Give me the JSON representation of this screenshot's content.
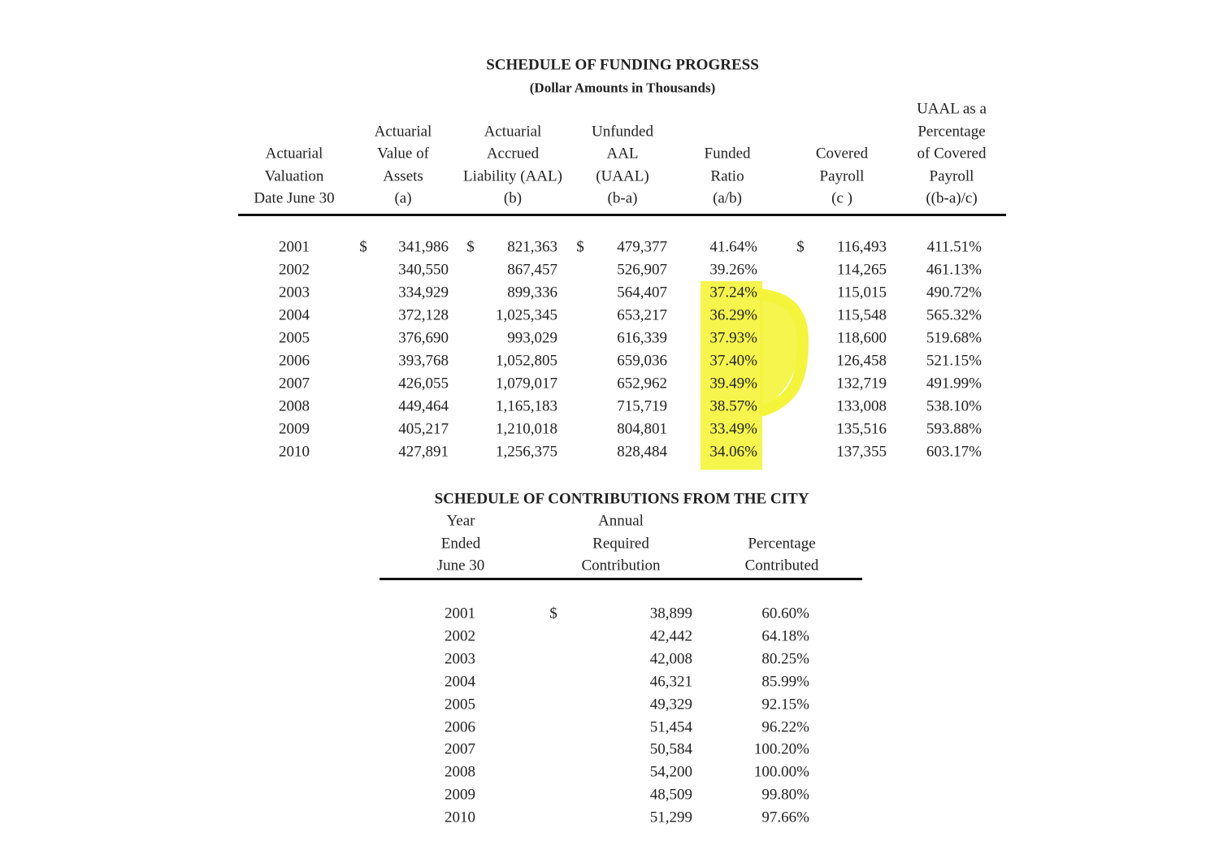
{
  "funding": {
    "title": "SCHEDULE OF FUNDING PROGRESS",
    "subtitle": "(Dollar Amounts in Thousands)",
    "dollar_sign": "$",
    "headers": [
      [
        "Actuarial",
        "Valuation",
        "Date June 30"
      ],
      [
        "Actuarial",
        "Value of",
        "Assets",
        "(a)"
      ],
      [
        "Actuarial",
        "Accrued",
        "Liability (AAL)",
        "(b)"
      ],
      [
        "Unfunded",
        "AAL",
        "(UAAL)",
        "(b-a)"
      ],
      [
        "Funded",
        "Ratio",
        "(a/b)"
      ],
      [
        "Covered",
        "Payroll",
        "(c )"
      ],
      [
        "UAAL as a",
        "Percentage",
        "of Covered",
        "Payroll",
        "((b-a)/c)"
      ]
    ],
    "rows": [
      [
        "2001",
        "341,986",
        "821,363",
        "479,377",
        "41.64%",
        "116,493",
        "411.51%"
      ],
      [
        "2002",
        "340,550",
        "867,457",
        "526,907",
        "39.26%",
        "114,265",
        "461.13%"
      ],
      [
        "2003",
        "334,929",
        "899,336",
        "564,407",
        "37.24%",
        "115,015",
        "490.72%"
      ],
      [
        "2004",
        "372,128",
        "1,025,345",
        "653,217",
        "36.29%",
        "115,548",
        "565.32%"
      ],
      [
        "2005",
        "376,690",
        "993,029",
        "616,339",
        "37.93%",
        "118,600",
        "519.68%"
      ],
      [
        "2006",
        "393,768",
        "1,052,805",
        "659,036",
        "37.40%",
        "126,458",
        "521.15%"
      ],
      [
        "2007",
        "426,055",
        "1,079,017",
        "652,962",
        "39.49%",
        "132,719",
        "491.99%"
      ],
      [
        "2008",
        "449,464",
        "1,165,183",
        "715,719",
        "38.57%",
        "133,008",
        "538.10%"
      ],
      [
        "2009",
        "405,217",
        "1,210,018",
        "804,801",
        "33.49%",
        "135,516",
        "593.88%"
      ],
      [
        "2010",
        "427,891",
        "1,256,375",
        "828,484",
        "34.06%",
        "137,355",
        "603.17%"
      ]
    ]
  },
  "contributions": {
    "title": "SCHEDULE OF CONTRIBUTIONS FROM THE CITY",
    "dollar_sign": "$",
    "headers": [
      [
        "Year",
        "Ended",
        "June 30"
      ],
      [
        "Annual",
        "Required",
        "Contribution"
      ],
      [
        "Percentage",
        "Contributed"
      ]
    ],
    "rows": [
      [
        "2001",
        "38,899",
        "60.60%"
      ],
      [
        "2002",
        "42,442",
        "64.18%"
      ],
      [
        "2003",
        "42,008",
        "80.25%"
      ],
      [
        "2004",
        "46,321",
        "85.99%"
      ],
      [
        "2005",
        "49,329",
        "92.15%"
      ],
      [
        "2006",
        "51,454",
        "96.22%"
      ],
      [
        "2007",
        "50,584",
        "100.20%"
      ],
      [
        "2008",
        "54,200",
        "100.00%"
      ],
      [
        "2009",
        "48,509",
        "99.80%"
      ],
      [
        "2010",
        "51,299",
        "97.66%"
      ]
    ]
  }
}
